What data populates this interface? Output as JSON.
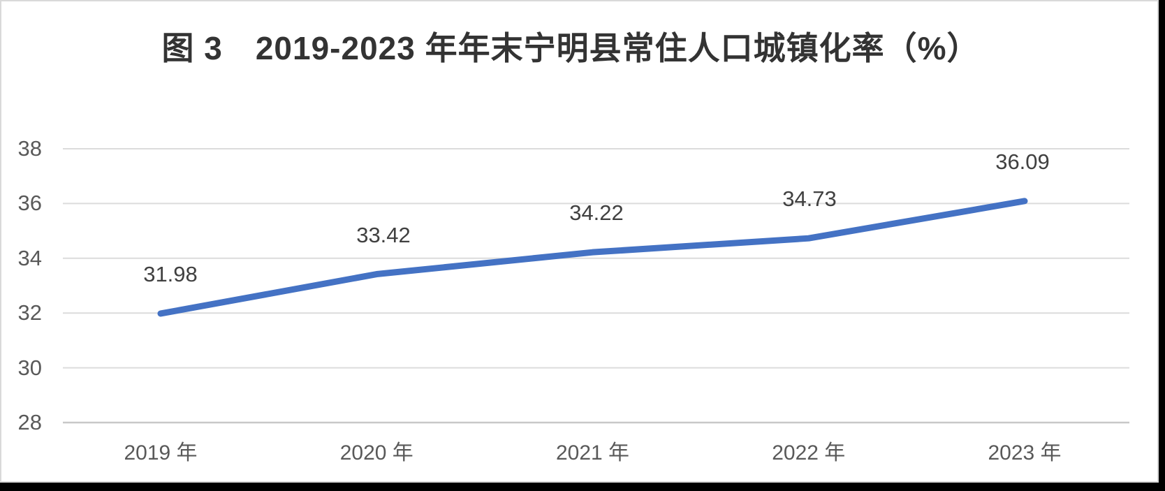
{
  "page": {
    "background_color": "#000000",
    "card_background_color": "#ffffff",
    "card_border_color": "#d9d9d9"
  },
  "chart_data": {
    "type": "line",
    "title": "图 3　2019-2023 年年末宁明县常住人口城镇化率（%）",
    "categories": [
      "2019 年",
      "2020 年",
      "2021 年",
      "2022 年",
      "2023 年"
    ],
    "values": [
      31.98,
      33.42,
      34.22,
      34.73,
      36.09
    ],
    "data_labels": [
      "31.98",
      "33.42",
      "34.22",
      "34.73",
      "36.09"
    ],
    "xlabel": "",
    "ylabel": "",
    "ylim": [
      28,
      38
    ],
    "yticks": [
      38,
      36,
      34,
      32,
      30,
      28
    ],
    "ytick_labels": [
      "38",
      "36",
      "34",
      "32",
      "30",
      "28"
    ],
    "grid": true,
    "legend": "none",
    "line_color": "#4472C4",
    "gridline_color": "#dcdcdc",
    "axis_line_color": "#c8c8c8",
    "tick_label_color": "#595959",
    "data_label_color": "#404040",
    "title_color": "#333333"
  }
}
